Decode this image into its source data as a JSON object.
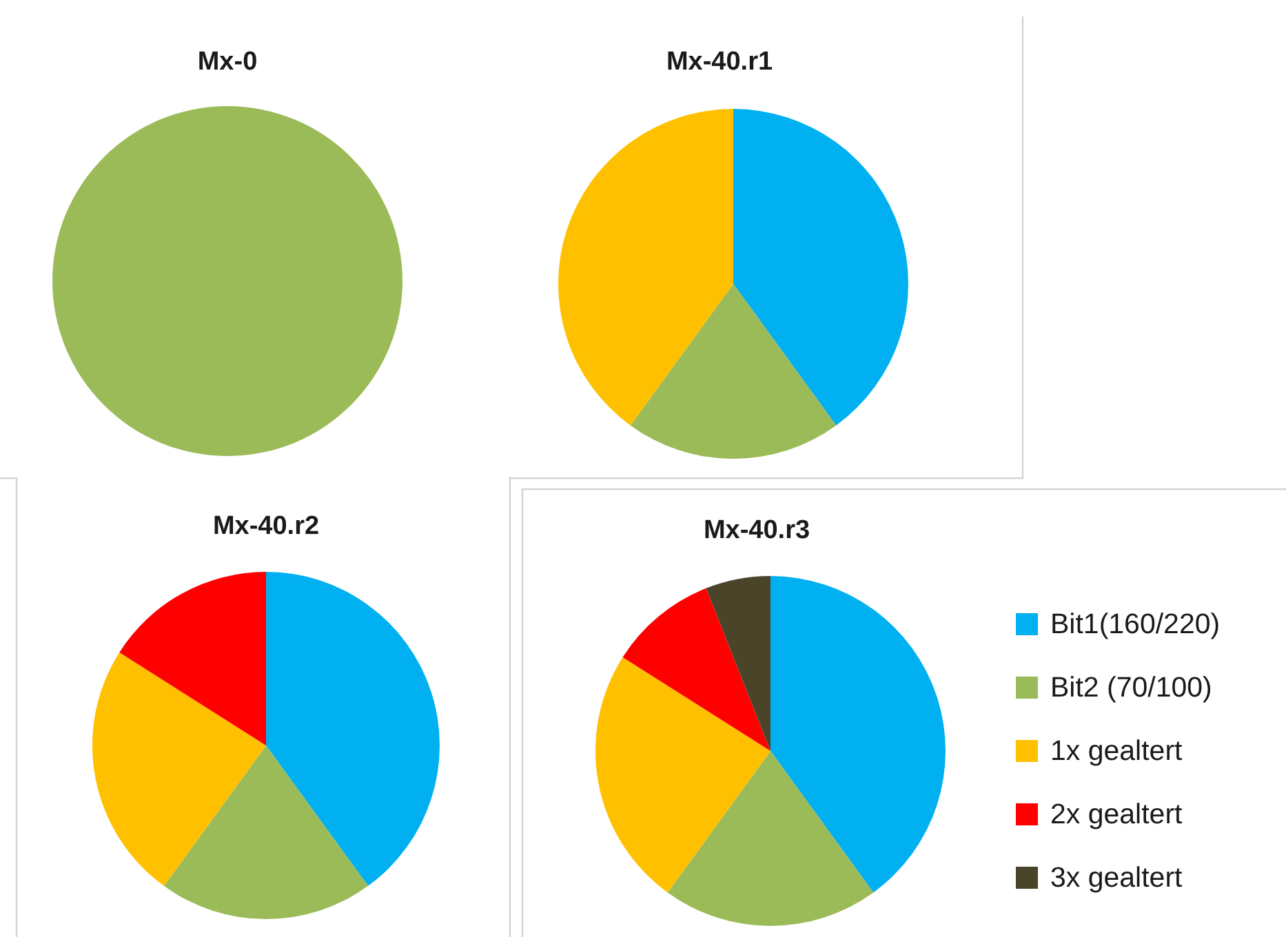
{
  "chart_data": [
    {
      "type": "pie",
      "title": "Mx-0",
      "categories": [
        null
      ],
      "values": [
        100
      ],
      "colors": [
        "#9bbb59"
      ]
    },
    {
      "type": "pie",
      "title": "Mx-40.r1",
      "categories": [
        null,
        null,
        null
      ],
      "values": [
        40,
        20,
        40
      ],
      "colors": [
        "#00b0f0",
        "#9bbb59",
        "#ffc000"
      ]
    },
    {
      "type": "pie",
      "title": "Mx-40.r2",
      "categories": [
        null,
        null,
        null,
        null
      ],
      "values": [
        40,
        20,
        24,
        16
      ],
      "colors": [
        "#00b0f0",
        "#9bbb59",
        "#ffc000",
        "#ff0000"
      ]
    },
    {
      "type": "pie",
      "title": "Mx-40.r3",
      "categories": [
        "Bit1(160/220)",
        "Bit2 (70/100)",
        "1x gealtert",
        "2x gealtert",
        "3x gealtert"
      ],
      "values": [
        40,
        20,
        24,
        10,
        6
      ],
      "colors": [
        "#00b0f0",
        "#9bbb59",
        "#ffc000",
        "#ff0000",
        "#4a4429"
      ],
      "legend": "right"
    }
  ]
}
